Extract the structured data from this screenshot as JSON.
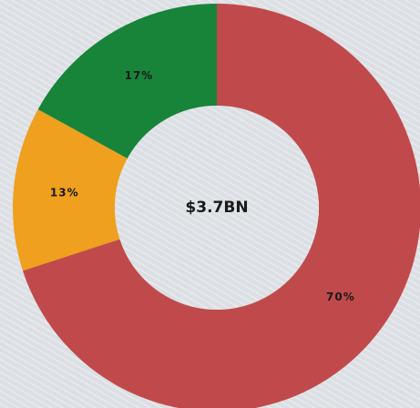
{
  "chart_data": {
    "type": "donut",
    "center_label": "$3.7BN",
    "values": [
      70,
      13,
      17
    ],
    "value_labels": [
      "70%",
      "13%",
      "17%"
    ],
    "colors": [
      "#c04a4b",
      "#eea01e",
      "#17843a"
    ]
  }
}
